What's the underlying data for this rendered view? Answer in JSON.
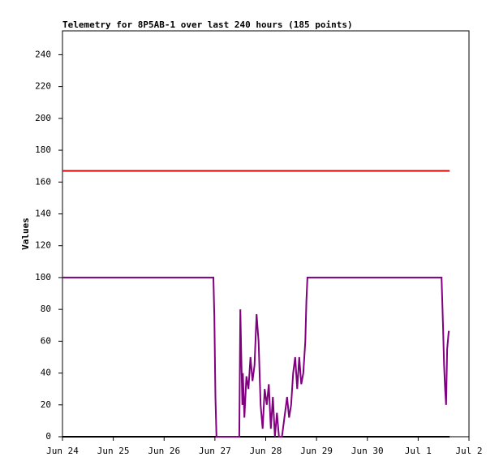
{
  "chart_data": {
    "type": "line",
    "title": "Telemetry for 8P5AB-1 over last 240 hours (185 points)",
    "y_label": "Values",
    "xlim": [
      0,
      8
    ],
    "xticks": [
      {
        "value": 0,
        "label": "Jun 24"
      },
      {
        "value": 1,
        "label": "Jun 25"
      },
      {
        "value": 2,
        "label": "Jun 26"
      },
      {
        "value": 3,
        "label": "Jun 27"
      },
      {
        "value": 4,
        "label": "Jun 28"
      },
      {
        "value": 5,
        "label": "Jun 29"
      },
      {
        "value": 6,
        "label": "Jun 30"
      },
      {
        "value": 7,
        "label": "Jul 1"
      },
      {
        "value": 8,
        "label": "Jul 2"
      }
    ],
    "ylim": [
      0,
      255
    ],
    "yticks": [
      0,
      20,
      40,
      60,
      80,
      100,
      120,
      140,
      160,
      180,
      200,
      220,
      240
    ],
    "grid": false,
    "series": [
      {
        "color": "#e00000",
        "x": [
          0,
          7.62
        ],
        "values": [
          167,
          167
        ]
      },
      {
        "color": "#000000",
        "x": [
          0,
          7.62
        ],
        "values": [
          0,
          0
        ]
      },
      {
        "color": "#800080",
        "x": [
          0,
          2.97,
          2.99,
          3.01,
          3.03,
          3.48,
          3.5,
          3.52,
          3.54,
          3.55,
          3.58,
          3.62,
          3.66,
          3.7,
          3.74,
          3.78,
          3.82,
          3.86,
          3.9,
          3.94,
          3.98,
          4.02,
          4.06,
          4.1,
          4.14,
          4.18,
          4.22,
          4.26,
          4.32,
          4.38,
          4.42,
          4.46,
          4.5,
          4.54,
          4.58,
          4.62,
          4.66,
          4.7,
          4.74,
          4.78,
          4.8,
          4.82,
          7.46,
          7.47,
          7.49,
          7.51,
          7.53,
          7.55,
          7.57,
          7.6,
          7.62
        ],
        "values": [
          100,
          100,
          75,
          25,
          0,
          0,
          80,
          50,
          20,
          40,
          12,
          38,
          30,
          50,
          35,
          45,
          77,
          60,
          20,
          5,
          30,
          20,
          33,
          5,
          25,
          0,
          15,
          0,
          0,
          15,
          25,
          12,
          20,
          40,
          50,
          30,
          50,
          33,
          40,
          60,
          85,
          100,
          100,
          90,
          68,
          45,
          30,
          20,
          55,
          66,
          66
        ]
      }
    ]
  }
}
